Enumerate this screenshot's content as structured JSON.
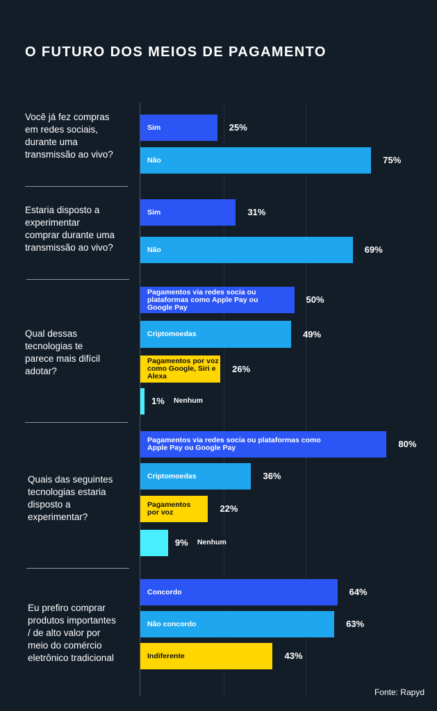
{
  "title": "O FUTURO DOS MEIOS DE PAGAMENTO",
  "source": "Fonte: Rapyd",
  "colors": {
    "background": "#131d28",
    "blue": "#2c55f5",
    "light_blue": "#1ea7ee",
    "yellow": "#ffd600",
    "cyan": "#48f0ff"
  },
  "chart_data": {
    "type": "bar",
    "orientation": "horizontal",
    "unit": "%",
    "xlim": [
      0,
      100
    ],
    "grid": true,
    "questions": [
      {
        "question": "Você já fez compras\nem redes sociais,\ndurante uma\ntransmissão ao vivo?",
        "bars": [
          {
            "label": "Sim",
            "value": 25,
            "display": "25%",
            "color": "blue"
          },
          {
            "label": "Não",
            "value": 75,
            "display": "75%",
            "color": "light_blue"
          }
        ]
      },
      {
        "question": "Estaria disposto a\nexperimentar\ncomprar durante uma\ntransmissão ao vivo?",
        "bars": [
          {
            "label": "Sim",
            "value": 31,
            "display": "31%",
            "color": "blue"
          },
          {
            "label": "Não",
            "value": 69,
            "display": "69%",
            "color": "light_blue"
          }
        ]
      },
      {
        "question": "Qual dessas\ntecnologias te\nparece mais difícil\nadotar?",
        "bars": [
          {
            "label": "Pagamentos via redes socia ou\nplataformas como Apple Pay ou\nGoogle Pay",
            "value": 50,
            "display": "50%",
            "color": "blue"
          },
          {
            "label": "Criptomoedas",
            "value": 49,
            "display": "49%",
            "color": "light_blue"
          },
          {
            "label": "Pagamentos por voz\ncomo Google, Siri e\nAlexa",
            "value": 26,
            "display": "26%",
            "color": "yellow"
          },
          {
            "label": "Nenhum",
            "value": 1,
            "display": "1%",
            "color": "cyan"
          }
        ]
      },
      {
        "question": "Quais das seguintes\ntecnologias estaria\ndisposto a\nexperimentar?",
        "bars": [
          {
            "label": "Pagamentos via redes socia ou plataformas como\nApple Pay ou Google Pay",
            "value": 80,
            "display": "80%",
            "color": "blue"
          },
          {
            "label": "Criptomoedas",
            "value": 36,
            "display": "36%",
            "color": "light_blue"
          },
          {
            "label": "Pagamentos\npor voz",
            "value": 22,
            "display": "22%",
            "color": "yellow"
          },
          {
            "label": "Nenhum",
            "value": 9,
            "display": "9%",
            "color": "cyan"
          }
        ]
      },
      {
        "question": "Eu prefiro comprar\nprodutos importantes\n/ de alto valor por\nmeio do comércio\neletrônico tradicional",
        "bars": [
          {
            "label": "Concordo",
            "value": 64,
            "display": "64%",
            "color": "blue"
          },
          {
            "label": "Não concordo",
            "value": 63,
            "display": "63%",
            "color": "light_blue"
          },
          {
            "label": "Indiferente",
            "value": 43,
            "display": "43%",
            "color": "yellow"
          }
        ]
      }
    ]
  }
}
